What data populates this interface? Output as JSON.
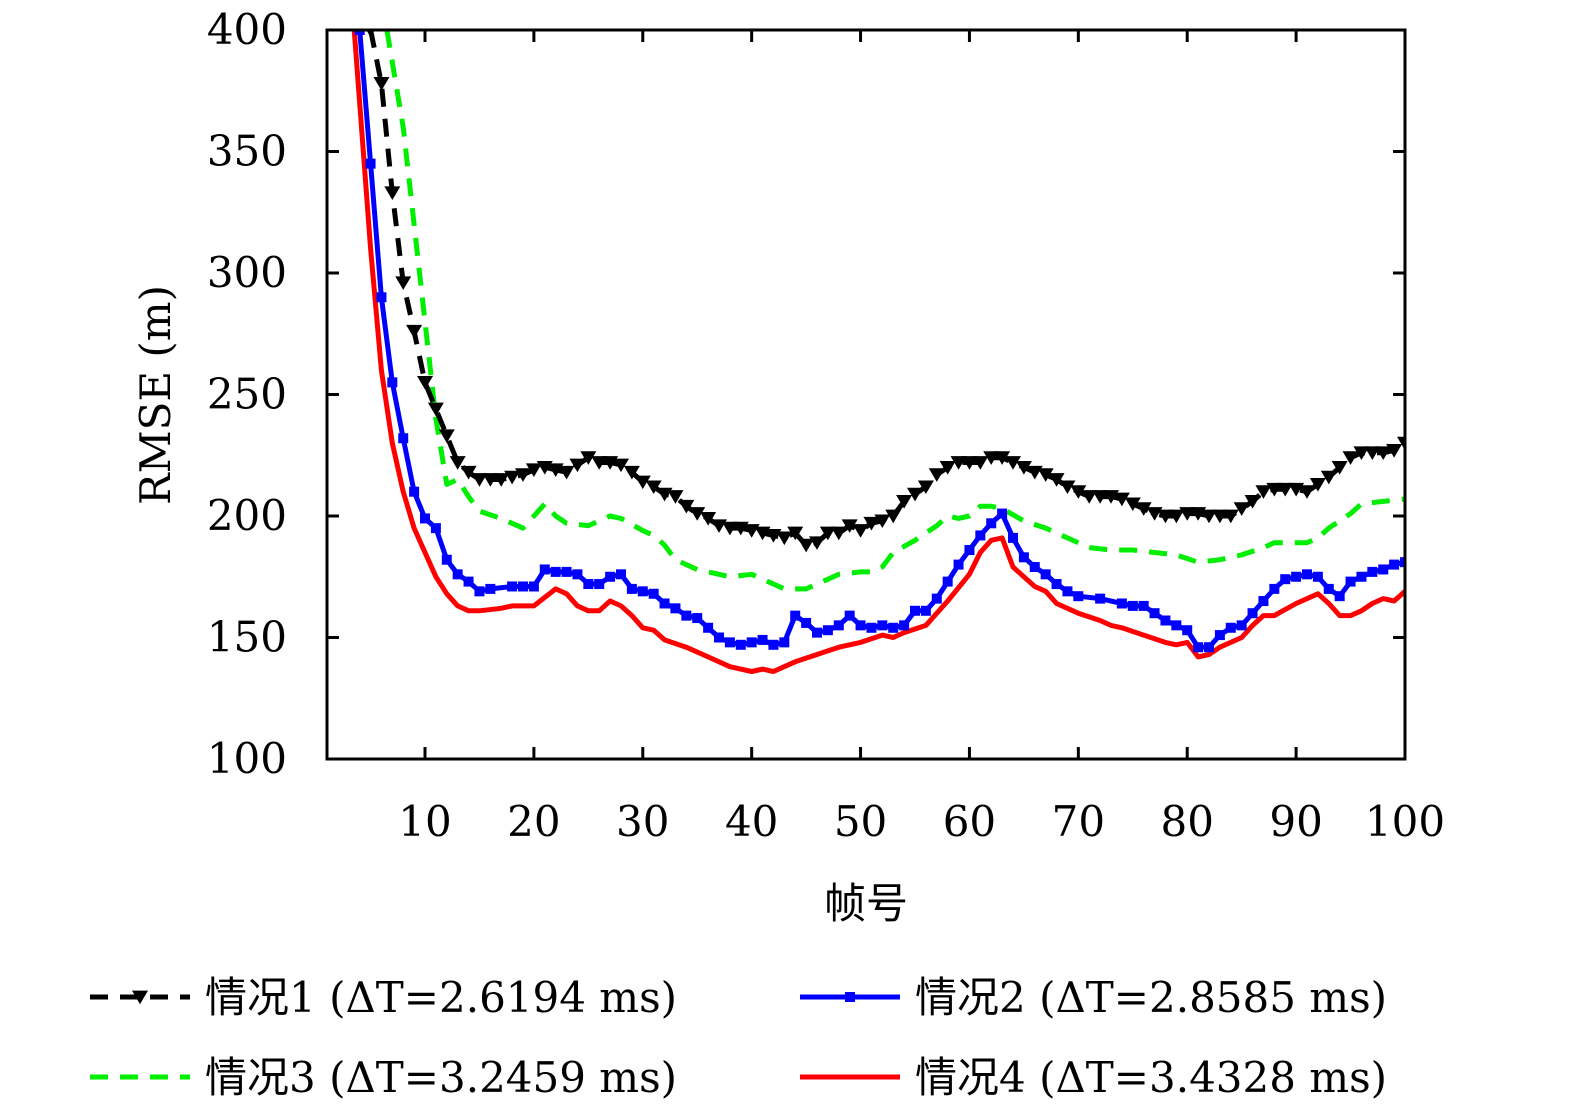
{
  "chart_data": {
    "type": "line",
    "xlabel": "帧号",
    "ylabel": "RMSE (m)",
    "xlim": [
      1,
      100
    ],
    "ylim": [
      100,
      400
    ],
    "xticks": [
      10,
      20,
      30,
      40,
      50,
      60,
      70,
      80,
      90,
      100
    ],
    "yticks": [
      100,
      150,
      200,
      250,
      300,
      350,
      400
    ],
    "grid": false,
    "legend_placement": "bottom",
    "series": [
      {
        "name": "情况1 (ΔT=2.6194 ms)",
        "color": "#000000",
        "dash": "dashed",
        "marker": "triangle-down",
        "x": [
          5,
          6,
          7,
          8,
          9,
          10,
          11,
          12,
          13,
          14,
          15,
          16,
          17,
          18,
          19,
          20,
          21,
          22,
          23,
          24,
          25,
          26,
          27,
          28,
          29,
          30,
          31,
          32,
          33,
          34,
          35,
          36,
          37,
          38,
          39,
          40,
          41,
          42,
          43,
          44,
          45,
          46,
          47,
          48,
          49,
          50,
          51,
          52,
          53,
          54,
          55,
          56,
          57,
          58,
          59,
          60,
          61,
          62,
          63,
          64,
          65,
          66,
          67,
          68,
          69,
          70,
          71,
          72,
          73,
          74,
          75,
          76,
          77,
          78,
          79,
          80,
          81,
          82,
          83,
          84,
          85,
          86,
          87,
          88,
          89,
          90,
          91,
          92,
          93,
          94,
          95,
          96,
          97,
          98,
          99,
          100
        ],
        "y": [
          400,
          378,
          333,
          296,
          276,
          255,
          244,
          233,
          222,
          218,
          215,
          215,
          215,
          216,
          217,
          219,
          220,
          219,
          218,
          221,
          224,
          222,
          222,
          221,
          218,
          214,
          212,
          209,
          208,
          204,
          201,
          199,
          196,
          195,
          195,
          194,
          193,
          192,
          191,
          193,
          188,
          189,
          193,
          193,
          196,
          194,
          197,
          198,
          200,
          206,
          209,
          212,
          217,
          220,
          222,
          222,
          222,
          224,
          224,
          222,
          220,
          218,
          217,
          215,
          212,
          210,
          208,
          208,
          208,
          207,
          205,
          203,
          201,
          200,
          200,
          201,
          201,
          200,
          200,
          200,
          203,
          206,
          210,
          211,
          211,
          211,
          210,
          213,
          216,
          220,
          224,
          226,
          226,
          226,
          227,
          230
        ]
      },
      {
        "name": "情况2 (ΔT=2.8585 ms)",
        "color": "#0000ff",
        "dash": "solid",
        "marker": "square",
        "x": [
          4,
          5,
          6,
          7,
          8,
          9,
          10,
          11,
          12,
          13,
          14,
          15,
          16,
          18,
          19,
          20,
          21,
          22,
          23,
          24,
          25,
          26,
          27,
          28,
          29,
          30,
          31,
          32,
          33,
          34,
          35,
          36,
          37,
          38,
          39,
          40,
          41,
          42,
          43,
          44,
          45,
          46,
          47,
          48,
          49,
          50,
          51,
          52,
          53,
          54,
          55,
          56,
          57,
          58,
          59,
          60,
          61,
          62,
          63,
          64,
          65,
          66,
          67,
          68,
          69,
          70,
          72,
          74,
          75,
          76,
          77,
          78,
          79,
          80,
          81,
          82,
          83,
          84,
          85,
          86,
          87,
          88,
          89,
          90,
          91,
          92,
          93,
          94,
          95,
          96,
          97,
          98,
          99,
          100
        ],
        "y": [
          400,
          345,
          290,
          255,
          232,
          210,
          199,
          195,
          182,
          176,
          173,
          169,
          170,
          171,
          171,
          171,
          178,
          177,
          177,
          176,
          172,
          172,
          175,
          176,
          170,
          169,
          168,
          164,
          162,
          159,
          158,
          154,
          150,
          148,
          147,
          148,
          149,
          147,
          148,
          159,
          156,
          152,
          153,
          155,
          159,
          155,
          154,
          155,
          154,
          155,
          161,
          161,
          166,
          173,
          180,
          186,
          192,
          197,
          201,
          191,
          183,
          179,
          176,
          172,
          169,
          167,
          166,
          164,
          163,
          163,
          160,
          157,
          155,
          153,
          146,
          146,
          151,
          154,
          155,
          160,
          165,
          170,
          174,
          175,
          176,
          175,
          170,
          167,
          173,
          175,
          177,
          178,
          180,
          181
        ]
      },
      {
        "name": "情况3 (ΔT=3.2459 ms)",
        "color": "#00ee00",
        "dash": "dashed",
        "marker": "none",
        "x": [
          6.5,
          8,
          9,
          10,
          11,
          12,
          13,
          14,
          15,
          17,
          18,
          19,
          20,
          21,
          22,
          23,
          25,
          26,
          27,
          28,
          30,
          31,
          32,
          33,
          35,
          37,
          38,
          40,
          41,
          42,
          43,
          45,
          47,
          48,
          50,
          51,
          52,
          53,
          55,
          57,
          58,
          59,
          60,
          61,
          62,
          63,
          65,
          67,
          69,
          71,
          73,
          75,
          77,
          79,
          81,
          83,
          85,
          87,
          88,
          89,
          91,
          92,
          93,
          95,
          96,
          98,
          100
        ],
        "y": [
          400,
          360,
          320,
          280,
          240,
          213,
          215,
          208,
          202,
          199,
          197,
          195,
          200,
          205,
          200,
          197,
          196,
          198,
          200,
          199,
          194,
          192,
          188,
          182,
          178,
          176,
          175,
          176,
          174,
          172,
          170,
          170,
          174,
          176,
          177,
          177,
          179,
          185,
          190,
          196,
          200,
          199,
          200,
          204,
          204,
          203,
          198,
          195,
          191,
          187,
          186,
          186,
          185,
          184,
          181,
          182,
          184,
          187,
          189,
          189,
          189,
          191,
          195,
          201,
          205,
          206,
          207
        ]
      },
      {
        "name": "情况4 (ΔT=3.4328 ms)",
        "color": "#ff0000",
        "dash": "solid",
        "marker": "none",
        "x": [
          3.5,
          5,
          6,
          7,
          8,
          9,
          10,
          11,
          12,
          13,
          14,
          15,
          17,
          18,
          20,
          22,
          23,
          24,
          25,
          26,
          27,
          28,
          29,
          30,
          31,
          32,
          34,
          36,
          38,
          40,
          41,
          42,
          44,
          46,
          48,
          50,
          52,
          53,
          54,
          56,
          58,
          60,
          61,
          62,
          63,
          64,
          65,
          66,
          67,
          68,
          70,
          72,
          73,
          74,
          76,
          78,
          79,
          80,
          81,
          82,
          83,
          85,
          86,
          87,
          88,
          90,
          92,
          93,
          94,
          95,
          96,
          97,
          98,
          99,
          100
        ],
        "y": [
          400,
          310,
          260,
          230,
          210,
          195,
          185,
          175,
          168,
          163,
          161,
          161,
          162,
          163,
          163,
          170,
          168,
          163,
          161,
          161,
          165,
          163,
          159,
          154,
          153,
          149,
          146,
          142,
          138,
          136,
          137,
          136,
          140,
          143,
          146,
          148,
          151,
          150,
          152,
          155,
          165,
          176,
          185,
          190,
          191,
          179,
          175,
          171,
          169,
          164,
          160,
          157,
          155,
          154,
          151,
          148,
          147,
          148,
          142,
          143,
          146,
          150,
          155,
          159,
          159,
          164,
          168,
          164,
          159,
          159,
          161,
          164,
          166,
          165,
          169
        ]
      }
    ]
  }
}
